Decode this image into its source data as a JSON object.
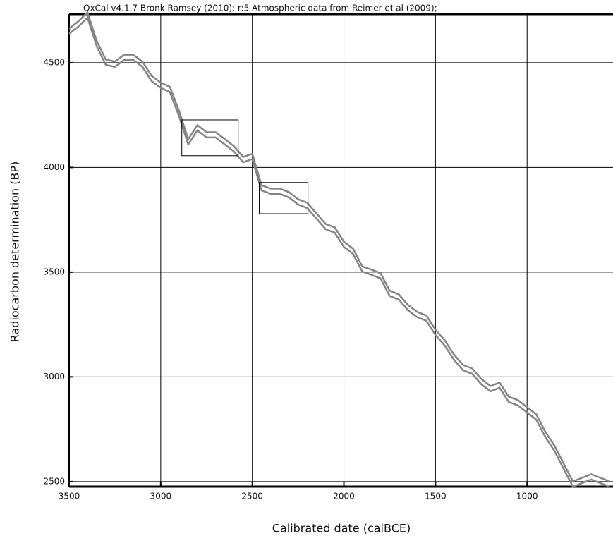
{
  "chart_data": {
    "type": "line",
    "title": "OxCal v4.1.7 Bronk Ramsey (2010); r:5 Atmospheric data from Reimer et al (2009);",
    "x_label": "Calibrated date (calBCE)",
    "y_label": "Radiocarbon determination (BP)",
    "x": [
      3500,
      3450,
      3400,
      3350,
      3300,
      3250,
      3200,
      3150,
      3100,
      3050,
      3000,
      2950,
      2900,
      2850,
      2800,
      2750,
      2700,
      2650,
      2600,
      2550,
      2500,
      2450,
      2400,
      2350,
      2300,
      2250,
      2200,
      2150,
      2100,
      2050,
      2000,
      1950,
      1900,
      1850,
      1800,
      1750,
      1700,
      1650,
      1600,
      1550,
      1500,
      1450,
      1400,
      1350,
      1300,
      1250,
      1200,
      1150,
      1100,
      1050,
      1000,
      950,
      900,
      850,
      800,
      750,
      700,
      650,
      600,
      550
    ],
    "series": [
      {
        "color": "#858585",
        "values": [
          4663,
          4697,
          4740,
          4605,
          4515,
          4505,
          4538,
          4538,
          4505,
          4437,
          4405,
          4385,
          4270,
          4135,
          4202,
          4168,
          4168,
          4135,
          4101,
          4050,
          4065,
          3915,
          3899,
          3899,
          3882,
          3848,
          3831,
          3781,
          3730,
          3714,
          3645,
          3612,
          3528,
          3512,
          3495,
          3411,
          3394,
          3343,
          3310,
          3293,
          3225,
          3175,
          3108,
          3057,
          3040,
          2990,
          2956,
          2973,
          2905,
          2889,
          2855,
          2821,
          2737,
          2670,
          2586,
          2501,
          2518,
          2535,
          2518,
          2501
        ]
      },
      {
        "color": "#858585",
        "values": [
          4638,
          4672,
          4715,
          4580,
          4490,
          4480,
          4513,
          4513,
          4480,
          4412,
          4380,
          4360,
          4245,
          4110,
          4177,
          4143,
          4143,
          4110,
          4076,
          4025,
          4040,
          3890,
          3874,
          3874,
          3857,
          3823,
          3806,
          3756,
          3705,
          3689,
          3620,
          3587,
          3503,
          3487,
          3470,
          3386,
          3369,
          3318,
          3285,
          3268,
          3200,
          3150,
          3083,
          3032,
          3015,
          2965,
          2931,
          2948,
          2880,
          2864,
          2830,
          2796,
          2712,
          2645,
          2561,
          2476,
          2493,
          2510,
          2493,
          2476
        ]
      }
    ],
    "boxes": [
      {
        "x": [
          2885,
          2577
        ],
        "y": [
          4056,
          4227
        ]
      },
      {
        "x": [
          2462,
          2196
        ],
        "y": [
          3779,
          3928
        ]
      }
    ],
    "xlim": [
      3500,
      531
    ],
    "ylim": [
      2476,
      4732
    ],
    "xticks": [
      3500,
      3000,
      2500,
      2000,
      1500,
      1000
    ],
    "yticks": [
      2500,
      3000,
      3500,
      4000,
      4500
    ],
    "grid": true
  }
}
